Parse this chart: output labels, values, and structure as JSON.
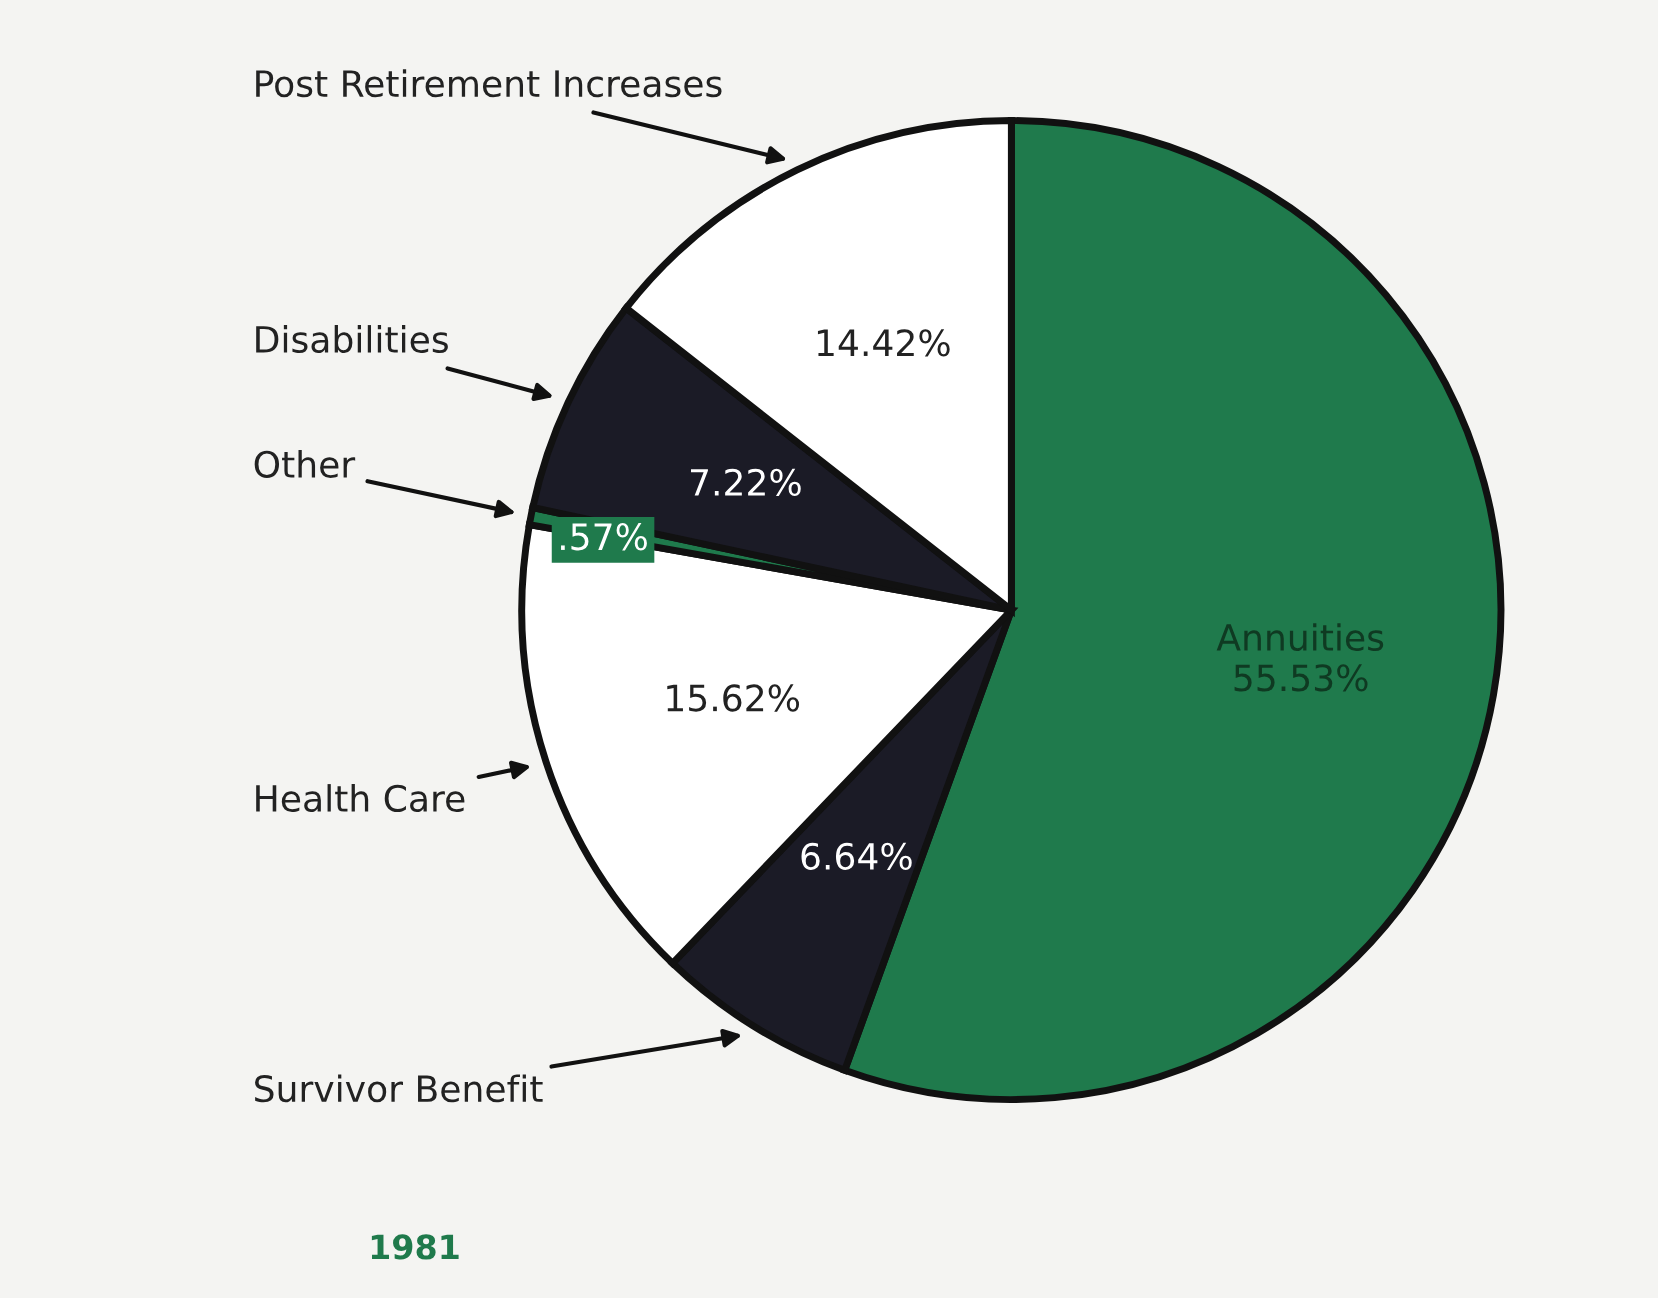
{
  "chart_data": {
    "type": "pie",
    "categories": [
      "Annuities",
      "Survivor Benefit",
      "Health Care",
      "Other",
      "Disabilities",
      "Post Retirement Increases"
    ],
    "values": [
      55.53,
      6.64,
      15.62,
      0.57,
      7.22,
      14.42
    ],
    "value_labels": [
      "55.53%",
      "6.64%",
      "15.62%",
      ".57%",
      "7.22%",
      "14.42%"
    ],
    "colors": [
      "#1f7a4c",
      "#1b1b26",
      "#ffffff",
      "#1f7a4c",
      "#1b1b26",
      "#ffffff"
    ],
    "annotations": [
      "1981"
    ]
  }
}
